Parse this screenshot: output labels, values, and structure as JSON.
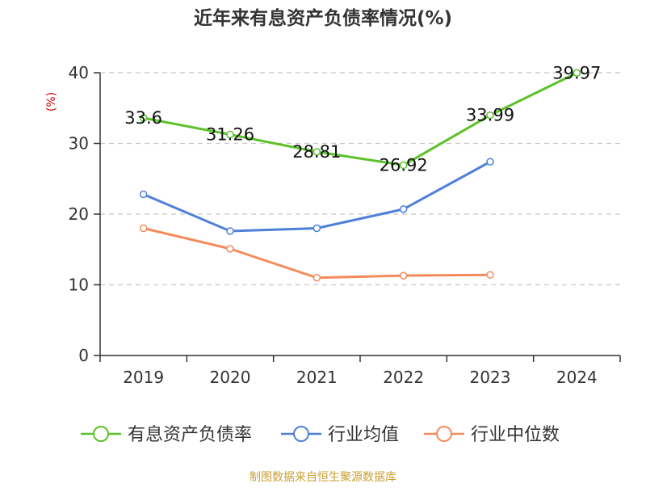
{
  "title": "近年来有息资产负债率情况(%)",
  "y_unit": "(%)",
  "footer": "制图数据来自恒生聚源数据库",
  "colors": {
    "axis": "#333333",
    "grid": "#c8c8c8",
    "unit_label": "#cc0000",
    "footer": "#c8a032",
    "title": "#333333"
  },
  "chart_data": {
    "type": "line",
    "title": "近年来有息资产负债率情况(%)",
    "ylabel": "(%)",
    "xlabel": "",
    "ylim": [
      0,
      40
    ],
    "yticks": [
      0,
      10,
      20,
      30,
      40
    ],
    "grid": true,
    "legend_position": "bottom",
    "categories": [
      "2019",
      "2020",
      "2021",
      "2022",
      "2023",
      "2024"
    ],
    "series": [
      {
        "name": "有息资产负债率",
        "color": "#5cc12a",
        "values": [
          33.6,
          31.26,
          28.81,
          26.92,
          33.99,
          39.97
        ],
        "labels": [
          "33.6",
          "31.26",
          "28.81",
          "26.92",
          "33.99",
          "39.97"
        ]
      },
      {
        "name": "行业均值",
        "color": "#4f80d8",
        "values": [
          22.8,
          17.6,
          18.0,
          20.7,
          27.4,
          null
        ],
        "labels": null
      },
      {
        "name": "行业中位数",
        "color": "#f48b5a",
        "values": [
          18.0,
          15.1,
          11.0,
          11.3,
          11.4,
          null
        ],
        "labels": null
      }
    ]
  }
}
